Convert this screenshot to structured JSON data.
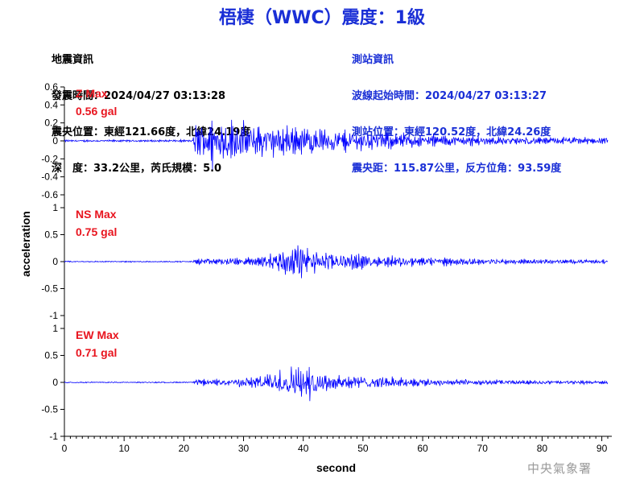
{
  "title": "梧棲（WWC）震度：1級",
  "earthquake_info": {
    "heading": "地震資訊",
    "origin_time": "發震時間：2024/04/27 03:13:28",
    "epicenter": "震央位置：東經121.66度，北緯24.19度",
    "depth_magnitude": "深　度：33.2公里，芮氏規模：5.0"
  },
  "station_info": {
    "heading": "測站資訊",
    "wave_start": "波線起始時間：2024/04/27 03:13:27",
    "location": "測站位置：東經120.52度，北緯24.26度",
    "distance": "震央距：115.87公里，反方位角：93.59度"
  },
  "credit": "中央氣象署",
  "colors": {
    "trace": "#0000ff",
    "title": "#1a2fd6",
    "max_label": "#e8141e",
    "axis": "#000000"
  },
  "chart_data": {
    "type": "line",
    "xlabel": "second",
    "ylabel": "acceleration",
    "xlim": [
      0,
      91
    ],
    "x_ticks": [
      0,
      10,
      20,
      30,
      40,
      50,
      60,
      70,
      80,
      90
    ],
    "sample_interval": 0.1,
    "duration": 91,
    "panels": [
      {
        "name": "Z",
        "max_label": "Z Max",
        "max_value": "0.56 gal",
        "ylim": [
          -0.6,
          0.6
        ],
        "y_ticks": [
          -0.6,
          -0.4,
          -0.2,
          0,
          0.2,
          0.4,
          0.6
        ],
        "y_tick_labels": [
          "-0.6",
          "-0.4",
          "-0.2",
          "0",
          "0.2",
          "0.4",
          "0.6"
        ],
        "envelope": [
          [
            0,
            0.02
          ],
          [
            21.5,
            0.02
          ],
          [
            22,
            0.38
          ],
          [
            25,
            0.48
          ],
          [
            29,
            0.4
          ],
          [
            35,
            0.32
          ],
          [
            40,
            0.3
          ],
          [
            45,
            0.24
          ],
          [
            55,
            0.16
          ],
          [
            65,
            0.11
          ],
          [
            75,
            0.08
          ],
          [
            91,
            0.07
          ]
        ]
      },
      {
        "name": "NS",
        "max_label": "NS Max",
        "max_value": "0.75 gal",
        "ylim": [
          -1,
          1
        ],
        "y_ticks": [
          -1,
          -0.5,
          0,
          0.5,
          1
        ],
        "y_tick_labels": [
          "-1",
          "-0.5",
          "0",
          "0.5",
          "1"
        ],
        "envelope": [
          [
            0,
            0.02
          ],
          [
            21.5,
            0.02
          ],
          [
            22,
            0.1
          ],
          [
            30,
            0.14
          ],
          [
            35,
            0.3
          ],
          [
            38.5,
            0.7
          ],
          [
            42,
            0.4
          ],
          [
            46,
            0.3
          ],
          [
            52,
            0.2
          ],
          [
            60,
            0.16
          ],
          [
            70,
            0.1
          ],
          [
            80,
            0.08
          ],
          [
            91,
            0.06
          ]
        ]
      },
      {
        "name": "EW",
        "max_label": "EW Max",
        "max_value": "0.71 gal",
        "ylim": [
          -1,
          1
        ],
        "y_ticks": [
          -1,
          -0.5,
          0,
          0.5,
          1
        ],
        "y_tick_labels": [
          "-1",
          "-0.5",
          "0",
          "0.5",
          "1"
        ],
        "envelope": [
          [
            0,
            0.02
          ],
          [
            21.5,
            0.02
          ],
          [
            22,
            0.1
          ],
          [
            30,
            0.14
          ],
          [
            35,
            0.35
          ],
          [
            38.5,
            0.65
          ],
          [
            42,
            0.45
          ],
          [
            46,
            0.3
          ],
          [
            52,
            0.2
          ],
          [
            60,
            0.14
          ],
          [
            70,
            0.09
          ],
          [
            80,
            0.07
          ],
          [
            91,
            0.05
          ]
        ]
      }
    ]
  }
}
